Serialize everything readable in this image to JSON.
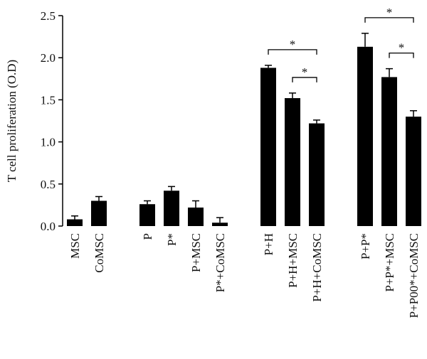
{
  "chart_data": {
    "type": "bar",
    "y_label": "T cell proliferation (O.D)",
    "categories": [
      "MSC",
      "CoMSC",
      null,
      "P",
      "P*",
      "P+MSC",
      "P*+CoMSC",
      null,
      "P+H",
      "P+H+MSC",
      "P+H+CoMSC",
      null,
      "P+P*",
      "P+P*+MSC",
      "P+P00*+CoMSC"
    ],
    "values": [
      0.08,
      0.3,
      null,
      0.26,
      0.42,
      0.22,
      0.04,
      null,
      1.88,
      1.52,
      1.22,
      null,
      2.13,
      1.77,
      1.3
    ],
    "errors": [
      0.04,
      0.05,
      null,
      0.04,
      0.05,
      0.08,
      0.06,
      null,
      0.03,
      0.06,
      0.04,
      null,
      0.16,
      0.1,
      0.07
    ],
    "color": "#000000",
    "ylim": [
      0,
      2.5
    ],
    "yticks": [
      {
        "value": 0,
        "label": "0.0"
      },
      0.5,
      {
        "value": 1,
        "label": "1.0"
      },
      1.5,
      {
        "value": 2,
        "label": "2.0"
      },
      2.5
    ],
    "annotations": [
      {
        "text": "*",
        "between": [
          "P+H",
          "P+H+CoMSC"
        ]
      },
      {
        "text": "*",
        "between": [
          "P+H+MSC",
          "P+H+CoMSC"
        ]
      },
      {
        "text": "*",
        "between": [
          "P+P*",
          "P+P00*+CoMSC"
        ]
      },
      {
        "text": "*",
        "between": [
          "P+P*+MSC",
          "P+P00*+CoMSC"
        ]
      }
    ]
  }
}
